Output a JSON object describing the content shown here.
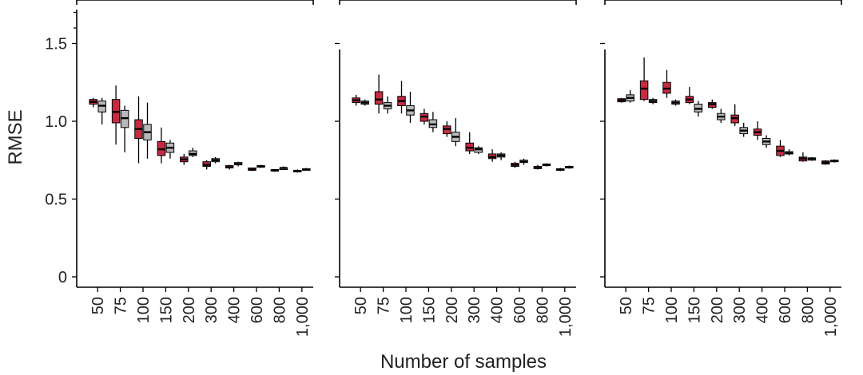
{
  "chart_data": {
    "type": "box",
    "ylabel": "RMSE",
    "xlabel": "Number of samples",
    "ylim": [
      0,
      1.8
    ],
    "yticks": [
      0,
      0.5,
      1.0,
      1.5
    ],
    "ytick_labels": [
      "0",
      "0.5",
      "1.0",
      "1.5"
    ],
    "categories": [
      "50",
      "75",
      "100",
      "150",
      "200",
      "300",
      "400",
      "600",
      "800",
      "1,000"
    ],
    "colors": {
      "red": "#c62b41",
      "grey": "#b9b9b9"
    },
    "panels": [
      {
        "series": [
          {
            "color": "red",
            "boxes": [
              {
                "wlo": 1.09,
                "q1": 1.11,
                "med": 1.125,
                "q3": 1.14,
                "whi": 1.15
              },
              {
                "wlo": 0.85,
                "q1": 0.99,
                "med": 1.06,
                "q3": 1.14,
                "whi": 1.23
              },
              {
                "wlo": 0.73,
                "q1": 0.89,
                "med": 0.95,
                "q3": 1.01,
                "whi": 1.16
              },
              {
                "wlo": 0.73,
                "q1": 0.78,
                "med": 0.82,
                "q3": 0.87,
                "whi": 0.96
              },
              {
                "wlo": 0.72,
                "q1": 0.74,
                "med": 0.755,
                "q3": 0.77,
                "whi": 0.79
              },
              {
                "wlo": 0.69,
                "q1": 0.71,
                "med": 0.72,
                "q3": 0.74,
                "whi": 0.75
              },
              {
                "wlo": 0.69,
                "q1": 0.7,
                "med": 0.705,
                "q3": 0.715,
                "whi": 0.72
              },
              {
                "wlo": 0.68,
                "q1": 0.685,
                "med": 0.69,
                "q3": 0.7,
                "whi": 0.7
              },
              {
                "wlo": 0.675,
                "q1": 0.68,
                "med": 0.685,
                "q3": 0.69,
                "whi": 0.69
              },
              {
                "wlo": 0.67,
                "q1": 0.675,
                "med": 0.68,
                "q3": 0.685,
                "whi": 0.69
              }
            ]
          },
          {
            "color": "grey",
            "boxes": [
              {
                "wlo": 0.98,
                "q1": 1.06,
                "med": 1.1,
                "q3": 1.13,
                "whi": 1.15
              },
              {
                "wlo": 0.8,
                "q1": 0.96,
                "med": 1.02,
                "q3": 1.07,
                "whi": 1.1
              },
              {
                "wlo": 0.76,
                "q1": 0.88,
                "med": 0.93,
                "q3": 0.98,
                "whi": 1.12
              },
              {
                "wlo": 0.76,
                "q1": 0.8,
                "med": 0.83,
                "q3": 0.86,
                "whi": 0.88
              },
              {
                "wlo": 0.77,
                "q1": 0.78,
                "med": 0.79,
                "q3": 0.81,
                "whi": 0.83
              },
              {
                "wlo": 0.73,
                "q1": 0.74,
                "med": 0.75,
                "q3": 0.76,
                "whi": 0.77
              },
              {
                "wlo": 0.71,
                "q1": 0.72,
                "med": 0.725,
                "q3": 0.735,
                "whi": 0.74
              },
              {
                "wlo": 0.7,
                "q1": 0.705,
                "med": 0.71,
                "q3": 0.715,
                "whi": 0.72
              },
              {
                "wlo": 0.69,
                "q1": 0.695,
                "med": 0.7,
                "q3": 0.7,
                "whi": 0.71
              },
              {
                "wlo": 0.685,
                "q1": 0.69,
                "med": 0.69,
                "q3": 0.695,
                "whi": 0.7
              }
            ]
          }
        ]
      },
      {
        "series": [
          {
            "color": "red",
            "boxes": [
              {
                "wlo": 1.1,
                "q1": 1.12,
                "med": 1.135,
                "q3": 1.15,
                "whi": 1.17
              },
              {
                "wlo": 1.05,
                "q1": 1.11,
                "med": 1.14,
                "q3": 1.19,
                "whi": 1.3
              },
              {
                "wlo": 1.05,
                "q1": 1.1,
                "med": 1.13,
                "q3": 1.16,
                "whi": 1.26
              },
              {
                "wlo": 0.98,
                "q1": 1.0,
                "med": 1.03,
                "q3": 1.05,
                "whi": 1.08
              },
              {
                "wlo": 0.9,
                "q1": 0.92,
                "med": 0.95,
                "q3": 0.97,
                "whi": 1.0
              },
              {
                "wlo": 0.79,
                "q1": 0.81,
                "med": 0.83,
                "q3": 0.86,
                "whi": 0.93
              },
              {
                "wlo": 0.74,
                "q1": 0.76,
                "med": 0.77,
                "q3": 0.79,
                "whi": 0.82
              },
              {
                "wlo": 0.7,
                "q1": 0.71,
                "med": 0.72,
                "q3": 0.73,
                "whi": 0.74
              },
              {
                "wlo": 0.69,
                "q1": 0.695,
                "med": 0.7,
                "q3": 0.71,
                "whi": 0.72
              },
              {
                "wlo": 0.68,
                "q1": 0.685,
                "med": 0.69,
                "q3": 0.695,
                "whi": 0.7
              }
            ]
          },
          {
            "color": "grey",
            "boxes": [
              {
                "wlo": 1.1,
                "q1": 1.11,
                "med": 1.12,
                "q3": 1.13,
                "whi": 1.14
              },
              {
                "wlo": 1.05,
                "q1": 1.08,
                "med": 1.1,
                "q3": 1.12,
                "whi": 1.16
              },
              {
                "wlo": 0.99,
                "q1": 1.04,
                "med": 1.07,
                "q3": 1.1,
                "whi": 1.19
              },
              {
                "wlo": 0.93,
                "q1": 0.96,
                "med": 0.98,
                "q3": 1.01,
                "whi": 1.06
              },
              {
                "wlo": 0.84,
                "q1": 0.87,
                "med": 0.9,
                "q3": 0.93,
                "whi": 1.02
              },
              {
                "wlo": 0.79,
                "q1": 0.8,
                "med": 0.82,
                "q3": 0.83,
                "whi": 0.84
              },
              {
                "wlo": 0.75,
                "q1": 0.77,
                "med": 0.78,
                "q3": 0.79,
                "whi": 0.8
              },
              {
                "wlo": 0.72,
                "q1": 0.735,
                "med": 0.74,
                "q3": 0.75,
                "whi": 0.76
              },
              {
                "wlo": 0.71,
                "q1": 0.715,
                "med": 0.72,
                "q3": 0.725,
                "whi": 0.73
              },
              {
                "wlo": 0.695,
                "q1": 0.7,
                "med": 0.705,
                "q3": 0.71,
                "whi": 0.715
              }
            ]
          }
        ]
      },
      {
        "series": [
          {
            "color": "red",
            "boxes": [
              {
                "wlo": 1.12,
                "q1": 1.125,
                "med": 1.135,
                "q3": 1.145,
                "whi": 1.15
              },
              {
                "wlo": 1.13,
                "q1": 1.14,
                "med": 1.21,
                "q3": 1.26,
                "whi": 1.41
              },
              {
                "wlo": 1.15,
                "q1": 1.18,
                "med": 1.21,
                "q3": 1.25,
                "whi": 1.33
              },
              {
                "wlo": 1.11,
                "q1": 1.12,
                "med": 1.14,
                "q3": 1.16,
                "whi": 1.22
              },
              {
                "wlo": 1.08,
                "q1": 1.09,
                "med": 1.11,
                "q3": 1.12,
                "whi": 1.14
              },
              {
                "wlo": 0.97,
                "q1": 0.99,
                "med": 1.02,
                "q3": 1.04,
                "whi": 1.11
              },
              {
                "wlo": 0.88,
                "q1": 0.91,
                "med": 0.93,
                "q3": 0.95,
                "whi": 1.0
              },
              {
                "wlo": 0.77,
                "q1": 0.78,
                "med": 0.81,
                "q3": 0.84,
                "whi": 0.88
              },
              {
                "wlo": 0.74,
                "q1": 0.745,
                "med": 0.76,
                "q3": 0.77,
                "whi": 0.8
              },
              {
                "wlo": 0.72,
                "q1": 0.725,
                "med": 0.735,
                "q3": 0.745,
                "whi": 0.75
              }
            ]
          },
          {
            "color": "grey",
            "boxes": [
              {
                "wlo": 1.12,
                "q1": 1.13,
                "med": 1.15,
                "q3": 1.17,
                "whi": 1.2
              },
              {
                "wlo": 1.11,
                "q1": 1.12,
                "med": 1.13,
                "q3": 1.14,
                "whi": 1.15
              },
              {
                "wlo": 1.1,
                "q1": 1.11,
                "med": 1.12,
                "q3": 1.13,
                "whi": 1.14
              },
              {
                "wlo": 1.03,
                "q1": 1.06,
                "med": 1.08,
                "q3": 1.11,
                "whi": 1.13
              },
              {
                "wlo": 0.99,
                "q1": 1.01,
                "med": 1.03,
                "q3": 1.05,
                "whi": 1.08
              },
              {
                "wlo": 0.9,
                "q1": 0.92,
                "med": 0.94,
                "q3": 0.96,
                "whi": 0.99
              },
              {
                "wlo": 0.83,
                "q1": 0.85,
                "med": 0.87,
                "q3": 0.89,
                "whi": 0.91
              },
              {
                "wlo": 0.78,
                "q1": 0.79,
                "med": 0.795,
                "q3": 0.805,
                "whi": 0.82
              },
              {
                "wlo": 0.745,
                "q1": 0.75,
                "med": 0.76,
                "q3": 0.765,
                "whi": 0.77
              },
              {
                "wlo": 0.735,
                "q1": 0.74,
                "med": 0.745,
                "q3": 0.75,
                "whi": 0.755
              }
            ]
          }
        ]
      }
    ]
  }
}
